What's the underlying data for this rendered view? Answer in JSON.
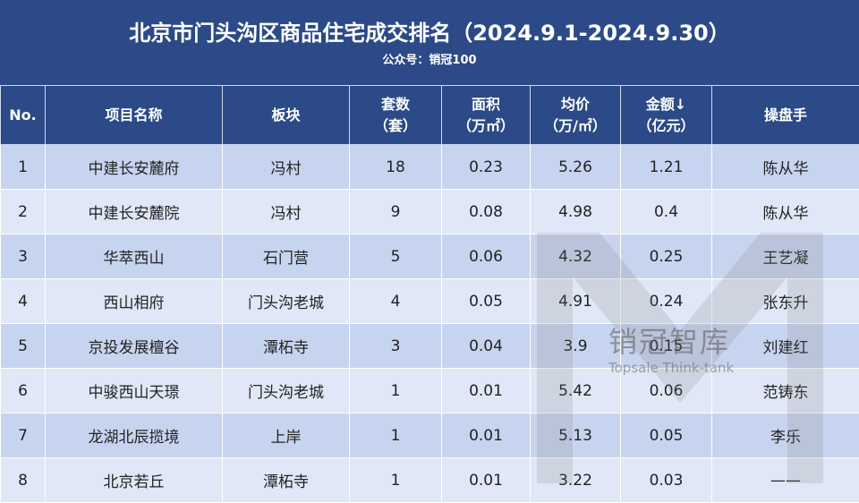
{
  "header": {
    "title": "北京市门头沟区商品住宅成交排名（2024.9.1-2024.9.30）",
    "subtitle": "公众号：销冠100"
  },
  "table": {
    "headers": [
      [
        "No."
      ],
      [
        "项目名称"
      ],
      [
        "板块"
      ],
      [
        "套数",
        "（套）"
      ],
      [
        "面积",
        "（万㎡）"
      ],
      [
        "均价",
        "（万/㎡）"
      ],
      [
        "金额↓",
        "（亿元）"
      ],
      [
        "操盘手"
      ]
    ],
    "rows": [
      [
        "1",
        "中建长安麓府",
        "冯村",
        "18",
        "0.23",
        "5.26",
        "1.21",
        "陈从华"
      ],
      [
        "2",
        "中建长安麓院",
        "冯村",
        "9",
        "0.08",
        "4.98",
        "0.4",
        "陈从华"
      ],
      [
        "3",
        "华萃西山",
        "石门营",
        "5",
        "0.06",
        "4.32",
        "0.25",
        "王艺凝"
      ],
      [
        "4",
        "西山相府",
        "门头沟老城",
        "4",
        "0.05",
        "4.91",
        "0.24",
        "张东升"
      ],
      [
        "5",
        "京投发展檀谷",
        "潭柘寺",
        "3",
        "0.04",
        "3.9",
        "0.15",
        "刘建红"
      ],
      [
        "6",
        "中骏西山天璟",
        "门头沟老城",
        "1",
        "0.01",
        "5.42",
        "0.06",
        "范铸东"
      ],
      [
        "7",
        "龙湖北辰揽境",
        "上岸",
        "1",
        "0.01",
        "5.13",
        "0.05",
        "李乐"
      ],
      [
        "8",
        "北京若丘",
        "潭柘寺",
        "1",
        "0.01",
        "3.22",
        "0.03",
        "——"
      ]
    ]
  },
  "watermark": {
    "name": "销冠智库",
    "en": "Topsale Think-tank"
  }
}
